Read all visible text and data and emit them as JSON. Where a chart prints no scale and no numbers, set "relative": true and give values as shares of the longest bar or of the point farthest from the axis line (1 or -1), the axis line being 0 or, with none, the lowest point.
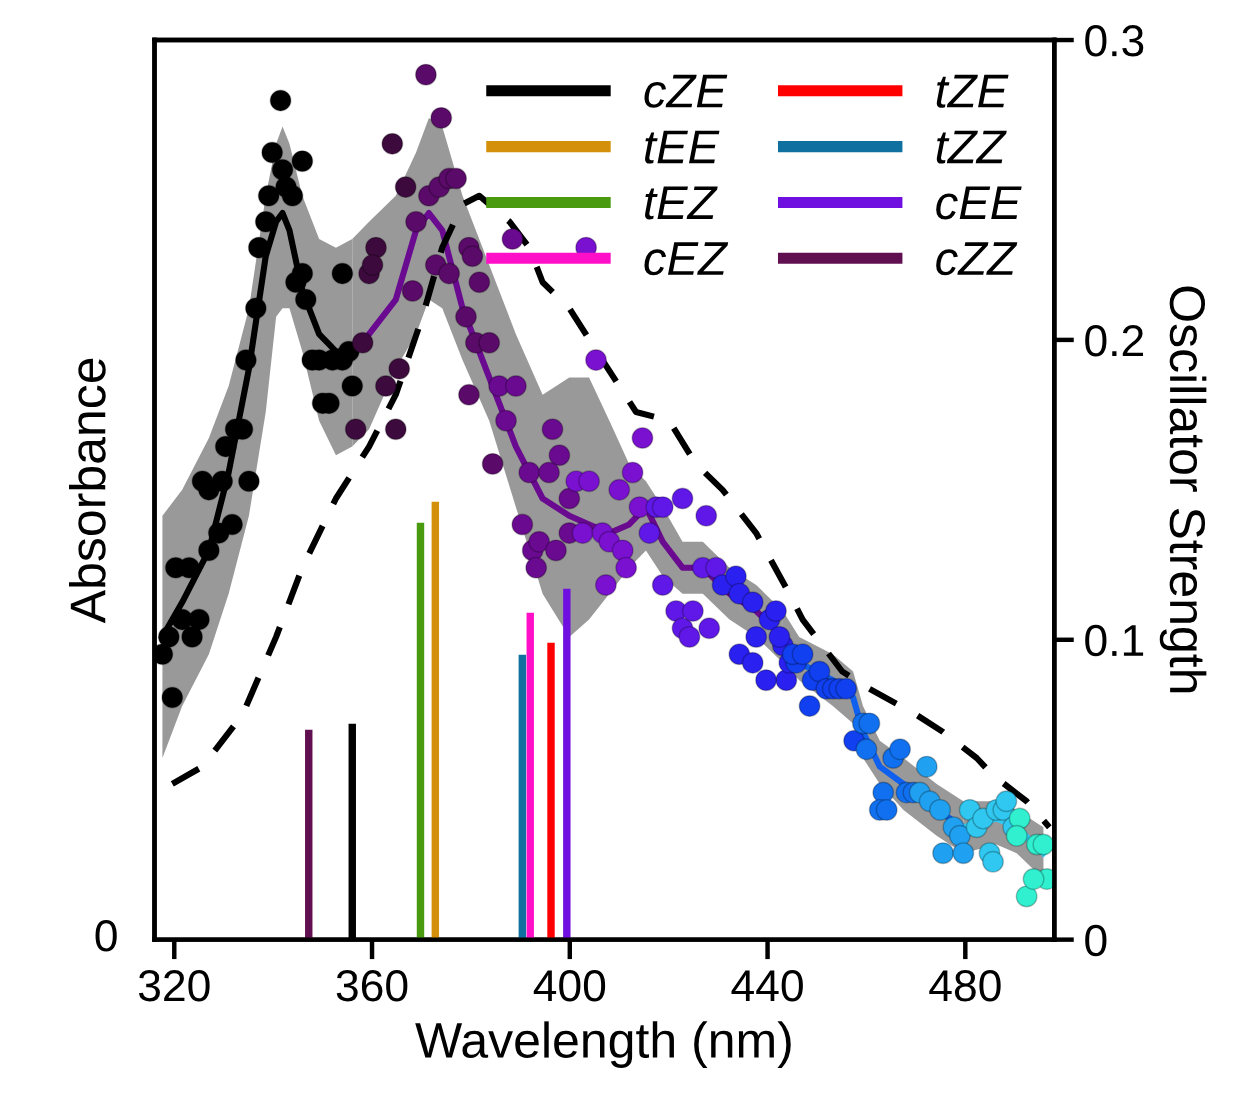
{
  "chart_data": {
    "type": "scatter",
    "relative": true,
    "xlabel": "Wavelength (nm)",
    "ylabel": "Absorbance",
    "y2label": "Oscillator Strength",
    "xlim": [
      316,
      498
    ],
    "xticks": [
      320,
      360,
      400,
      440,
      480
    ],
    "annotations": [
      "0"
    ],
    "y2lim": [
      0,
      0.3
    ],
    "y2ticks": [
      0,
      0.1,
      0.2,
      0.3
    ],
    "grid": false,
    "legend": "top right",
    "series": [
      {
        "marker": "circle",
        "x": [
          317.6,
          319.6,
          318.9,
          321.6,
          323.6,
          325.0,
          320.3,
          323.0,
          325.7,
          327.0,
          327.0,
          329.0,
          329.7,
          331.7,
          330.4,
          332.4,
          333.8,
          335.1,
          334.5,
          336.5,
          337.1,
          338.5,
          339.1,
          339.8,
          341.9,
          342.6,
          343.9,
          345.9,
          341.5,
          345.9,
          344.6,
          346.6,
          347.9,
          349.3,
          350.0,
          351.3,
          352.0,
          354.0,
          354.0,
          356.0,
          355.3,
          356.7,
          358.1,
          359.4,
          360.8,
          360.1,
          362.8,
          364.1,
          364.8,
          365.5,
          366.8,
          368.2,
          368.9,
          370.9,
          371.5,
          372.9,
          373.6,
          374.0,
          375.6,
          377.0,
          375.6,
          379.6,
          379.0,
          380.3,
          381.0,
          379.6,
          381.7,
          383.7,
          384.4,
          385.7,
          387.1,
          389.1,
          388.4,
          390.4,
          391.8,
          392.5,
          393.2,
          403.3,
          393.8,
          396.5,
          397.9,
          395.8,
          399.9,
          401.3,
          403.9,
          397.2,
          399.9,
          402.6,
          406.6,
          408.0,
          410.7,
          411.4,
          407.3,
          410.0,
          412.7,
          414.7,
          405.3,
          414.1,
          417.5,
          418.8,
          416.1,
          418.8,
          422.8,
          427.6,
          421.5,
          422.8,
          424.2,
          424.9,
          426.9,
          429.6,
          428.2,
          430.9,
          433.6,
          434.3,
          437.0,
          437.7,
          440.4,
          441.7,
          443.1,
          434.3,
          437.0,
          443.8,
          444.4,
          445.8,
          439.7,
          442.4,
          445.1,
          447.1,
          448.5,
          449.1,
          450.5,
          451.9,
          453.2,
          454.5,
          455.9,
          457.5,
          459.3,
          460.6,
          460.0,
          463.4,
          462.7,
          464.1,
          465.4,
          466.8,
          468.1,
          469.5,
          470.8,
          472.2,
          472.8,
          474.9,
          475.5,
          477.6,
          478.9,
          479.6,
          480.9,
          482.3,
          483.6,
          484.9,
          485.6,
          486.3,
          487.7,
          488.3,
          489.7,
          491.0,
          490.4,
          492.4,
          494.5,
          495.8,
          496.5,
          493.8
        ],
        "values": [
          0.33,
          0.28,
          0.35,
          0.37,
          0.35,
          0.37,
          0.43,
          0.43,
          0.53,
          0.52,
          0.45,
          0.47,
          0.53,
          0.48,
          0.57,
          0.59,
          0.59,
          0.53,
          0.67,
          0.73,
          0.8,
          0.83,
          0.86,
          0.91,
          0.89,
          0.87,
          0.86,
          0.9,
          0.97,
          0.77,
          0.76,
          0.74,
          0.67,
          0.67,
          0.62,
          0.62,
          0.67,
          0.67,
          0.77,
          0.64,
          0.68,
          0.59,
          0.69,
          0.77,
          0.8,
          0.78,
          0.64,
          0.92,
          0.59,
          0.66,
          0.87,
          0.75,
          0.83,
          1.0,
          0.86,
          0.78,
          0.87,
          0.95,
          0.88,
          0.88,
          0.77,
          0.8,
          0.72,
          0.79,
          0.69,
          0.63,
          0.76,
          0.69,
          0.55,
          0.64,
          0.6,
          0.64,
          0.81,
          0.48,
          0.54,
          0.45,
          0.43,
          0.8,
          0.46,
          0.59,
          0.56,
          0.54,
          0.51,
          0.53,
          0.53,
          0.45,
          0.47,
          0.47,
          0.47,
          0.46,
          0.45,
          0.43,
          0.41,
          0.52,
          0.54,
          0.58,
          0.67,
          0.5,
          0.5,
          0.5,
          0.47,
          0.41,
          0.51,
          0.49,
          0.38,
          0.36,
          0.35,
          0.38,
          0.43,
          0.43,
          0.36,
          0.41,
          0.42,
          0.4,
          0.39,
          0.35,
          0.37,
          0.38,
          0.34,
          0.33,
          0.32,
          0.3,
          0.32,
          0.32,
          0.3,
          0.35,
          0.33,
          0.33,
          0.27,
          0.3,
          0.31,
          0.29,
          0.29,
          0.29,
          0.29,
          0.23,
          0.25,
          0.25,
          0.22,
          0.17,
          0.15,
          0.15,
          0.21,
          0.22,
          0.17,
          0.17,
          0.17,
          0.2,
          0.16,
          0.15,
          0.1,
          0.13,
          0.12,
          0.1,
          0.15,
          0.13,
          0.14,
          0.1,
          0.09,
          0.15,
          0.15,
          0.16,
          0.13,
          0.14,
          0.12,
          0.05,
          0.11,
          0.11,
          0.07,
          0.07
        ],
        "colors": [
          "#000000",
          "#000000",
          "#000000",
          "#000000",
          "#000000",
          "#000000",
          "#000000",
          "#000000",
          "#000000",
          "#000000",
          "#000000",
          "#000000",
          "#000000",
          "#000000",
          "#000000",
          "#000000",
          "#000000",
          "#000000",
          "#000000",
          "#000000",
          "#000000",
          "#000000",
          "#000000",
          "#000000",
          "#000000",
          "#000000",
          "#000000",
          "#000000",
          "#000000",
          "#000000",
          "#000000",
          "#000000",
          "#000000",
          "#000000",
          "#000000",
          "#000000",
          "#000000",
          "#000000",
          "#000000",
          "#000000",
          "#000000",
          "#3c0a3c",
          "#3c0a3c",
          "#3c0a3c",
          "#3c0a3c",
          "#3c0a3c",
          "#3c0a3c",
          "#3c0a3c",
          "#3c0a3c",
          "#3c0a3c",
          "#3c0a3c",
          "#5a0a68",
          "#5a0a68",
          "#5a0a68",
          "#5a0a68",
          "#5a0a68",
          "#5a0a68",
          "#5a0a68",
          "#5a0a68",
          "#5a0a68",
          "#5a0a68",
          "#5a0a68",
          "#5a0a68",
          "#5a0a68",
          "#5a0a68",
          "#5a0a68",
          "#5a0a68",
          "#5a0a68",
          "#5a0a68",
          "#6a0a90",
          "#6a0a90",
          "#6a0a90",
          "#6a0a90",
          "#6a0a90",
          "#6a0a90",
          "#6a0a90",
          "#6a0a90",
          "#7a10d0",
          "#6a0a90",
          "#6a0a90",
          "#6a0a90",
          "#6a0a90",
          "#6a0a90",
          "#7a10d0",
          "#7a10d0",
          "#6a0a90",
          "#6a0a90",
          "#7a10d0",
          "#7a10d0",
          "#7a10d0",
          "#7a10d0",
          "#7a10d0",
          "#7a10d0",
          "#7a10d0",
          "#7a10d0",
          "#7a10d0",
          "#7a10d0",
          "#7a10d0",
          "#6018e8",
          "#6018e8",
          "#6018e8",
          "#6018e8",
          "#6018e8",
          "#6018e8",
          "#6018e8",
          "#6018e8",
          "#6018e8",
          "#6018e8",
          "#6018e8",
          "#6018e8",
          "#6018e8",
          "#2a20f0",
          "#2a20f0",
          "#2a20f0",
          "#2a20f0",
          "#2a20f0",
          "#2a20f0",
          "#2a20f0",
          "#2a20f0",
          "#2a20f0",
          "#2a20f0",
          "#2a20f0",
          "#2a20f0",
          "#1040f0",
          "#2a20f0",
          "#2a20f0",
          "#1040f0",
          "#1040f0",
          "#1040f0",
          "#1040f0",
          "#1040f0",
          "#1040f0",
          "#1040f0",
          "#1040f0",
          "#1040f0",
          "#1040f0",
          "#1070f0",
          "#1070f0",
          "#1070f0",
          "#1070f0",
          "#1070f0",
          "#1070f0",
          "#1070f0",
          "#1070f0",
          "#1070f0",
          "#1070f0",
          "#20a0f0",
          "#20a0f0",
          "#20a0f0",
          "#20a0f0",
          "#20a0f0",
          "#20a0f0",
          "#20a0f0",
          "#20a0f0",
          "#30c8f0",
          "#30c8f0",
          "#30c8f0",
          "#30c8f0",
          "#30c8f0",
          "#30c8f0",
          "#30c8f0",
          "#30c8f0",
          "#30c8f0",
          "#30f0d0",
          "#30f0d0",
          "#30f0d0",
          "#30f0d0",
          "#30f0d0",
          "#30f0d0",
          "#30f0d0"
        ]
      },
      {
        "type": "line",
        "color": "#000000",
        "x": [
          317.6,
          321.6,
          327.0,
          331.0,
          335.1,
          338.5,
          340.6,
          341.9,
          343.3,
          345.9,
          349.3,
          352.7,
          356.0
        ],
        "values": [
          0.35,
          0.39,
          0.45,
          0.54,
          0.66,
          0.79,
          0.83,
          0.84,
          0.82,
          0.75,
          0.7,
          0.68,
          0.68
        ],
        "lower": [
          0.21,
          0.27,
          0.33,
          0.4,
          0.49,
          0.61,
          0.72,
          0.73,
          0.73,
          0.68,
          0.6,
          0.56,
          0.57
        ],
        "upper": [
          0.49,
          0.52,
          0.58,
          0.64,
          0.73,
          0.86,
          0.92,
          0.94,
          0.92,
          0.86,
          0.81,
          0.8,
          0.81
        ]
      },
      {
        "type": "line",
        "color": "#6a0a90",
        "x": [
          356.0,
          359.4,
          364.8,
          368.9,
          371.5,
          374.2,
          378.3,
          383.7,
          389.1,
          394.5,
          399.9,
          403.9,
          408.0,
          412.0,
          415.4,
          418.8,
          422.8,
          426.9,
          432.3,
          437.7,
          443.1
        ],
        "values": [
          0.68,
          0.7,
          0.74,
          0.82,
          0.84,
          0.82,
          0.73,
          0.65,
          0.57,
          0.51,
          0.49,
          0.48,
          0.47,
          0.48,
          0.5,
          0.46,
          0.43,
          0.43,
          0.4,
          0.38,
          0.35
        ],
        "lower": [
          0.57,
          0.59,
          0.66,
          0.7,
          0.74,
          0.73,
          0.67,
          0.6,
          0.5,
          0.4,
          0.35,
          0.37,
          0.4,
          0.43,
          0.45,
          0.42,
          0.4,
          0.4,
          0.37,
          0.35,
          0.32
        ],
        "upper": [
          0.81,
          0.83,
          0.86,
          0.91,
          0.95,
          0.94,
          0.86,
          0.78,
          0.7,
          0.63,
          0.65,
          0.65,
          0.6,
          0.55,
          0.53,
          0.5,
          0.46,
          0.46,
          0.43,
          0.41,
          0.38
        ]
      },
      {
        "type": "line",
        "color": "#1060f0",
        "x": [
          443.1,
          446.4,
          453.2,
          457.3,
          459.3,
          462.7,
          467.5,
          474.2,
          479.6
        ],
        "values": [
          0.35,
          0.32,
          0.3,
          0.28,
          0.24,
          0.2,
          0.18,
          0.15,
          0.13
        ],
        "lower": [
          0.32,
          0.3,
          0.27,
          0.25,
          0.21,
          0.18,
          0.15,
          0.12,
          0.1
        ],
        "upper": [
          0.38,
          0.35,
          0.33,
          0.31,
          0.27,
          0.23,
          0.21,
          0.18,
          0.16
        ]
      },
      {
        "type": "line",
        "color": "#30c8f0",
        "x": [
          479.6,
          486.3,
          490.4,
          495.8
        ],
        "values": [
          0.13,
          0.14,
          0.13,
          0.1
        ],
        "lower": [
          0.1,
          0.11,
          0.1,
          0.07
        ],
        "upper": [
          0.16,
          0.16,
          0.15,
          0.13
        ]
      },
      {
        "type": "line",
        "color": "#000000",
        "line_style": "dashed",
        "x": [
          319.6,
          325.7,
          333.8,
          340.6,
          345.9,
          352.7,
          359.4,
          364.8,
          370.2,
          374.2,
          378.3,
          381.7,
          387.8,
          391.8,
          394.5,
          399.9,
          406.6,
          413.4,
          420.1,
          425.5,
          430.9,
          437.7,
          444.4,
          447.1,
          455.1,
          460.6,
          470.1,
          475.5,
          482.3,
          485.6,
          492.4,
          497.0
        ],
        "values": [
          0.18,
          0.2,
          0.26,
          0.35,
          0.43,
          0.51,
          0.57,
          0.63,
          0.72,
          0.8,
          0.85,
          0.86,
          0.83,
          0.8,
          0.76,
          0.73,
          0.67,
          0.61,
          0.6,
          0.55,
          0.52,
          0.47,
          0.4,
          0.37,
          0.31,
          0.29,
          0.26,
          0.24,
          0.21,
          0.19,
          0.16,
          0.13
        ]
      },
      {
        "type": "bar",
        "axis": "y2",
        "name": "cZE",
        "color": "#000000",
        "x": [
          356.0
        ],
        "values": [
          0.072
        ]
      },
      {
        "type": "bar",
        "axis": "y2",
        "name": "tEE",
        "color": "#d4900a",
        "x": [
          372.8
        ],
        "values": [
          0.146
        ]
      },
      {
        "type": "bar",
        "axis": "y2",
        "name": "tEZ",
        "color": "#4a9a10",
        "x": [
          369.8
        ],
        "values": [
          0.139
        ]
      },
      {
        "type": "bar",
        "axis": "y2",
        "name": "cEZ",
        "color": "#ff10c8",
        "x": [
          392.0
        ],
        "values": [
          0.109
        ]
      },
      {
        "type": "bar",
        "axis": "y2",
        "name": "tZE",
        "color": "#ff0000",
        "x": [
          396.2
        ],
        "values": [
          0.099
        ]
      },
      {
        "type": "bar",
        "axis": "y2",
        "name": "tZZ",
        "color": "#1070a0",
        "x": [
          390.4
        ],
        "values": [
          0.095
        ]
      },
      {
        "type": "bar",
        "axis": "y2",
        "name": "cEE",
        "color": "#7010e0",
        "x": [
          399.4
        ],
        "values": [
          0.117
        ]
      },
      {
        "type": "bar",
        "axis": "y2",
        "name": "cZZ",
        "color": "#601050",
        "x": [
          347.2
        ],
        "values": [
          0.07
        ]
      }
    ]
  }
}
